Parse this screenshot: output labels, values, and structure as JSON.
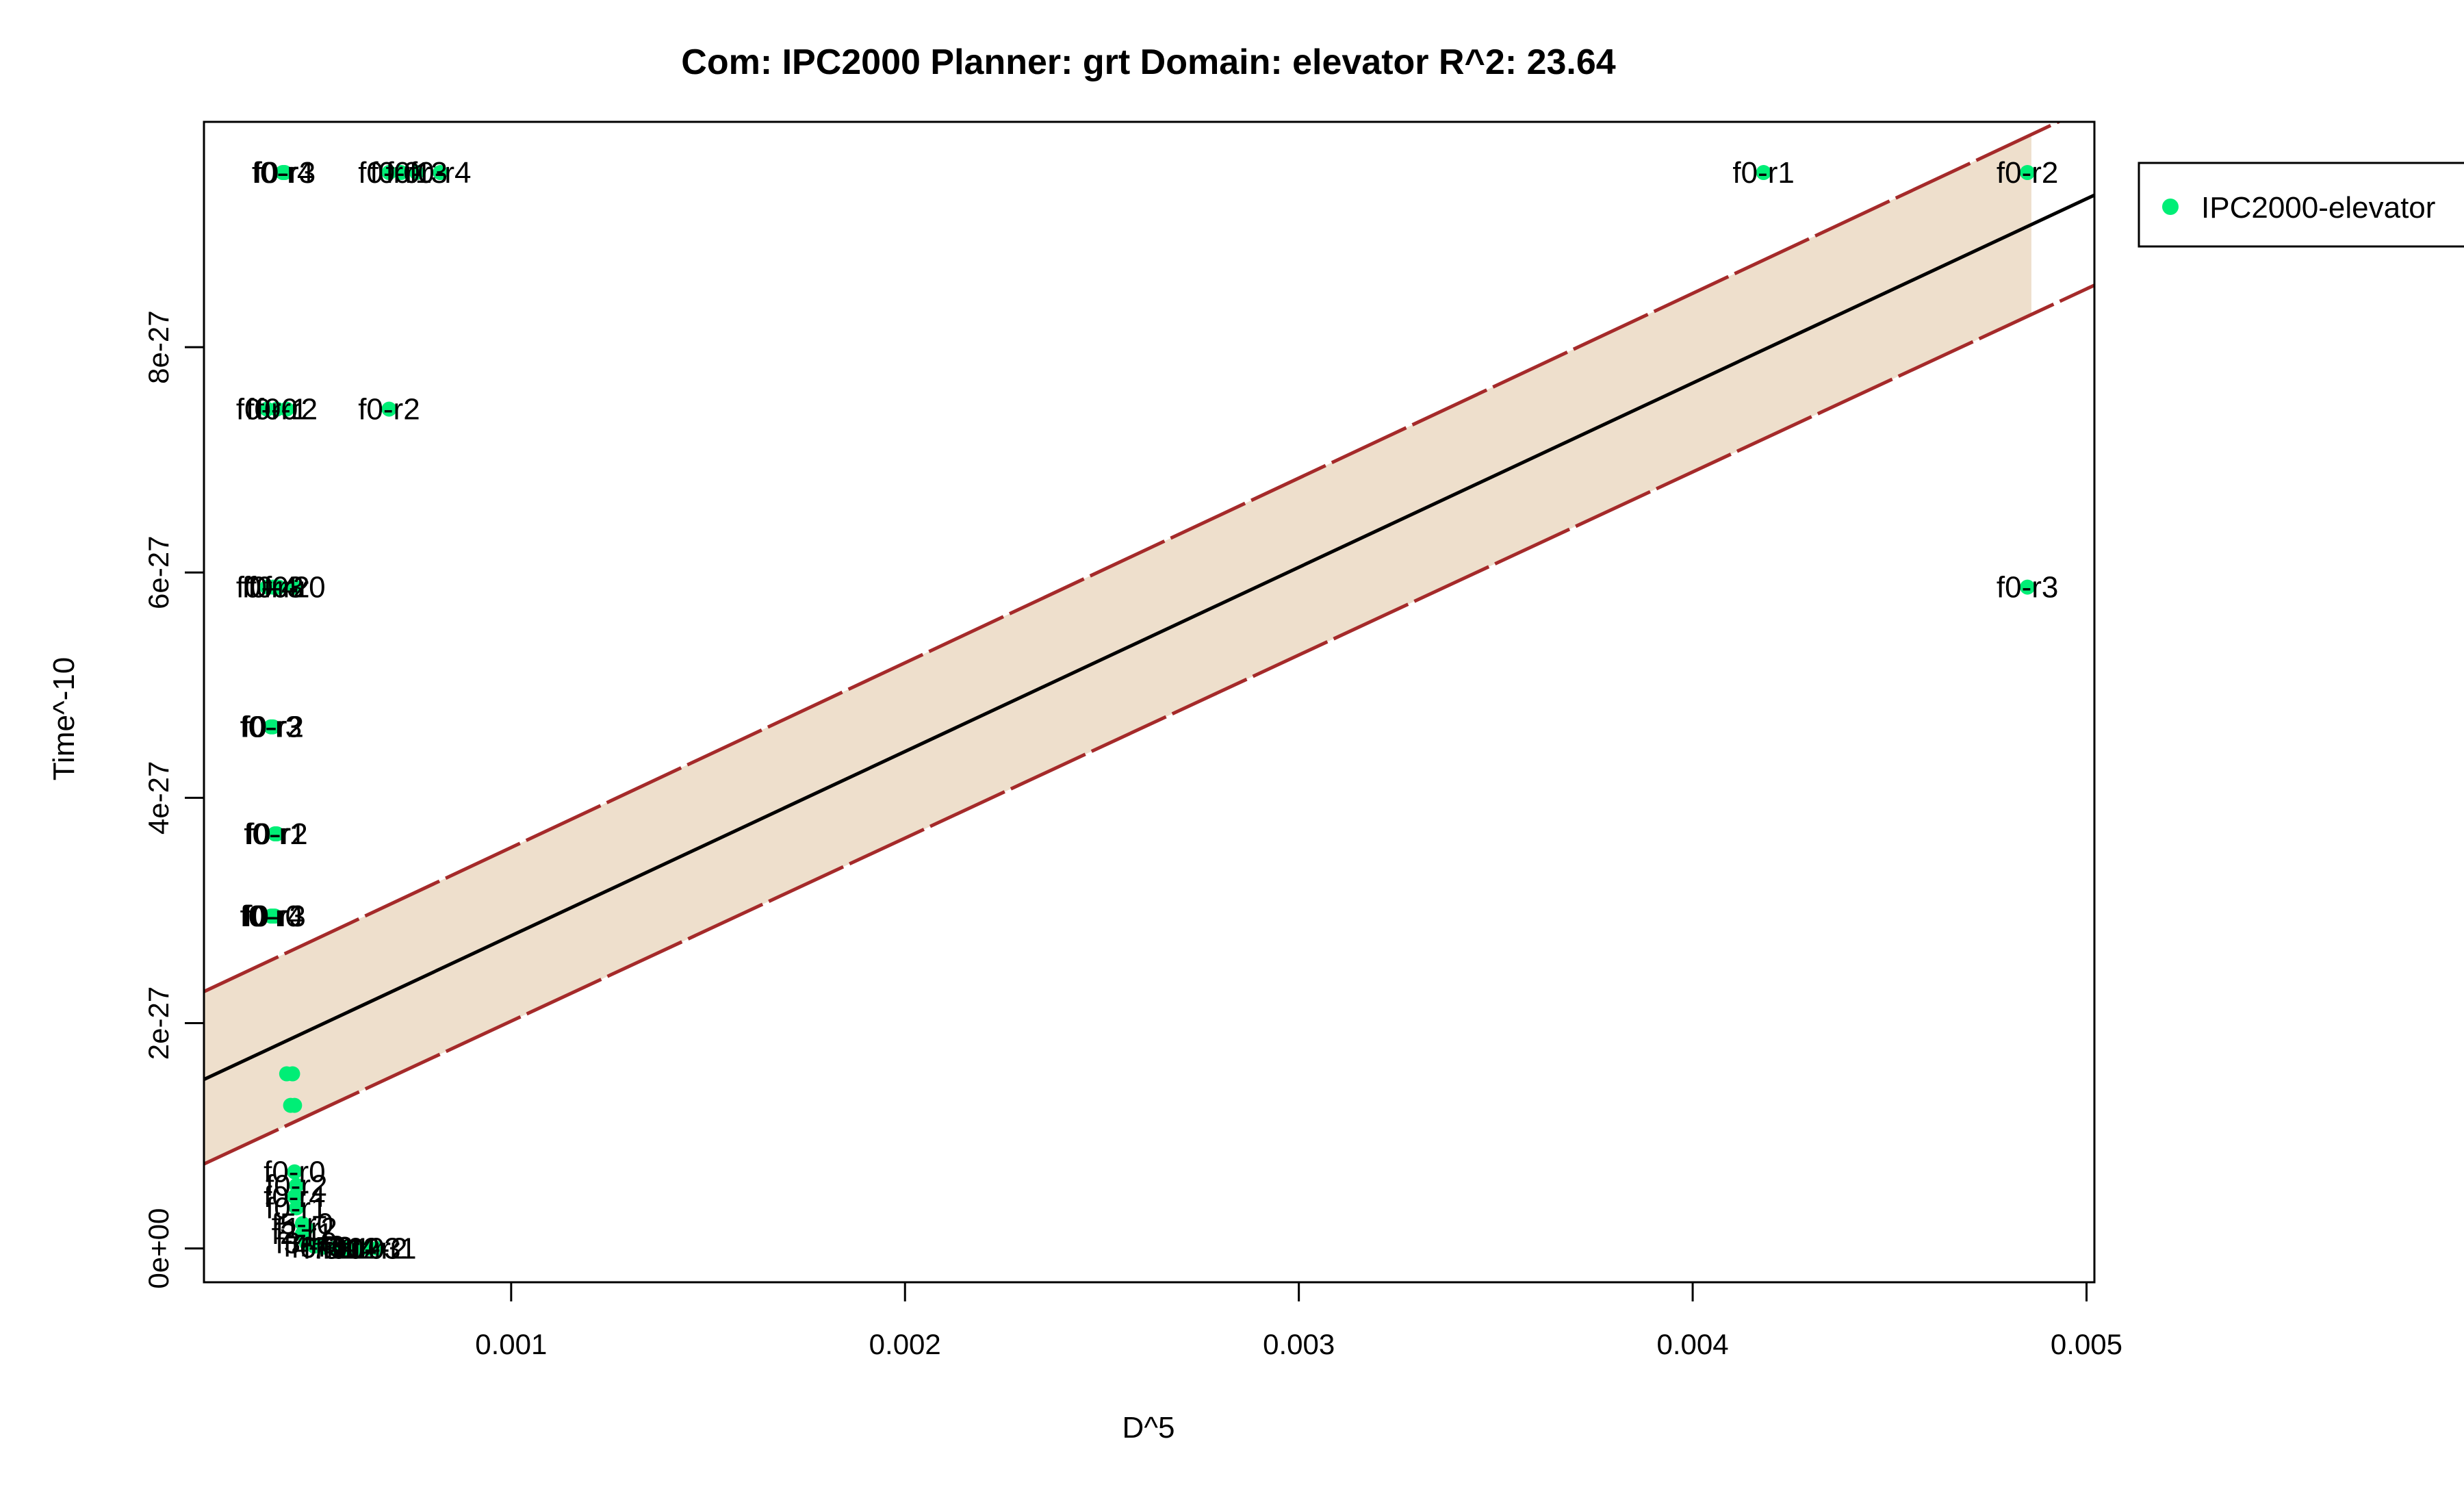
{
  "chart_data": {
    "type": "scatter",
    "title": "Com: IPC2000 Planner: grt Domain: elevator R^2: 23.64",
    "xlabel": "D^5",
    "ylabel": "Time^-10",
    "xlim": [
      0.00022,
      0.00502
    ],
    "ylim": [
      -3e-28,
      1e-26
    ],
    "x_ticks": [
      {
        "value": 0.001,
        "label": "0.001"
      },
      {
        "value": 0.002,
        "label": "0.002"
      },
      {
        "value": 0.003,
        "label": "0.003"
      },
      {
        "value": 0.004,
        "label": "0.004"
      },
      {
        "value": 0.005,
        "label": "0.005"
      }
    ],
    "y_ticks": [
      {
        "value": 0,
        "label": "0e+00"
      },
      {
        "value": 2e-27,
        "label": "2e-27"
      },
      {
        "value": 4e-27,
        "label": "4e-27"
      },
      {
        "value": 6e-27,
        "label": "6e-27"
      },
      {
        "value": 8e-27,
        "label": "8e-27"
      }
    ],
    "grid": false,
    "legend": {
      "position": "top-right",
      "entries": [
        {
          "name": "IPC2000-elevator",
          "color": "#00ee76"
        }
      ]
    },
    "point_color": "#00ee76",
    "fit_line": {
      "color": "#000000",
      "x": [
        0.00022,
        0.00502
      ],
      "y": [
        1.5e-27,
        9.35e-27
      ]
    },
    "prediction_band": {
      "fill": "#eedfcc",
      "edge_color": "#a52a2a",
      "fill_x_range": [
        0.00022,
        0.00486
      ],
      "upper": {
        "x": [
          0.00022,
          0.00502
        ],
        "y": [
          2.28e-27,
          1.015e-26
        ]
      },
      "lower": {
        "x": [
          0.00022,
          0.00502
        ],
        "y": [
          7.5e-28,
          8.55e-27
        ]
      }
    },
    "series": [
      {
        "name": "IPC2000-elevator",
        "points": [
          {
            "x": 0.00042,
            "y": 9.55e-27,
            "label": "f0-r4"
          },
          {
            "x": 0.000425,
            "y": 9.55e-27,
            "label": "f0-r3"
          },
          {
            "x": 0.00069,
            "y": 9.55e-27,
            "label": "f0-r0"
          },
          {
            "x": 0.00072,
            "y": 9.55e-27,
            "label": "f0-r1"
          },
          {
            "x": 0.00076,
            "y": 9.55e-27,
            "label": "f0-r3"
          },
          {
            "x": 0.00082,
            "y": 9.55e-27,
            "label": "f0-r4"
          },
          {
            "x": 0.00418,
            "y": 9.55e-27,
            "label": "f0-r1"
          },
          {
            "x": 0.00485,
            "y": 9.55e-27,
            "label": "f0-r2"
          },
          {
            "x": 0.00038,
            "y": 7.45e-27,
            "label": "f0-r0"
          },
          {
            "x": 0.000405,
            "y": 7.45e-27,
            "label": "f0-r1"
          },
          {
            "x": 0.00043,
            "y": 7.45e-27,
            "label": "f0-r2"
          },
          {
            "x": 0.00069,
            "y": 7.45e-27,
            "label": "f0-r2"
          },
          {
            "x": 0.00038,
            "y": 5.87e-27,
            "label": "f0-r4"
          },
          {
            "x": 0.000395,
            "y": 5.87e-27,
            "label": "f0-r3"
          },
          {
            "x": 0.00041,
            "y": 5.87e-27,
            "label": "f0-r2"
          },
          {
            "x": 0.00045,
            "y": 5.87e-27,
            "label": "f0-r0"
          },
          {
            "x": 0.00485,
            "y": 5.87e-27,
            "label": "f0-r3"
          },
          {
            "x": 0.00039,
            "y": 4.63e-27,
            "label": "f0-r3"
          },
          {
            "x": 0.000395,
            "y": 4.63e-27,
            "label": "f0-r2"
          },
          {
            "x": 0.0004,
            "y": 3.68e-27,
            "label": "f0-r1"
          },
          {
            "x": 0.000405,
            "y": 3.68e-27,
            "label": "f0-r2"
          },
          {
            "x": 0.00039,
            "y": 2.95e-27,
            "label": "f0-r0"
          },
          {
            "x": 0.000395,
            "y": 2.95e-27,
            "label": "f0-r4"
          },
          {
            "x": 0.0004,
            "y": 2.95e-27,
            "label": "f0-r3"
          },
          {
            "x": 0.00043,
            "y": 1.55e-27,
            "label": ""
          },
          {
            "x": 0.000445,
            "y": 1.55e-27,
            "label": ""
          },
          {
            "x": 0.00044,
            "y": 1.27e-27,
            "label": ""
          },
          {
            "x": 0.00045,
            "y": 1.27e-27,
            "label": ""
          },
          {
            "x": 0.00045,
            "y": 6.8e-28,
            "label": "f0-r0"
          },
          {
            "x": 0.000455,
            "y": 5.6e-28,
            "label": "f0-r2"
          },
          {
            "x": 0.00045,
            "y": 4.6e-28,
            "label": "f0-r4"
          },
          {
            "x": 0.000455,
            "y": 3.6e-28,
            "label": "f0-r1"
          },
          {
            "x": 0.00047,
            "y": 2.2e-28,
            "label": "f5-r0"
          },
          {
            "x": 0.00048,
            "y": 1.8e-28,
            "label": "f1-r2"
          },
          {
            "x": 0.00047,
            "y": 1.3e-28,
            "label": "f2-r1"
          },
          {
            "x": 0.00048,
            "y": 5e-29,
            "label": "f3-r0"
          },
          {
            "x": 0.0005,
            "y": 2e-29,
            "label": "f4-r3"
          },
          {
            "x": 0.00052,
            "y": 1e-29,
            "label": "f6-r2"
          },
          {
            "x": 0.00055,
            "y": 0.0,
            "label": "f7-r1"
          },
          {
            "x": 0.00058,
            "y": 0.0,
            "label": "f8-r4"
          },
          {
            "x": 0.0006,
            "y": 0.0,
            "label": "f9-r0"
          },
          {
            "x": 0.00062,
            "y": 0.0,
            "label": "f10-r3"
          },
          {
            "x": 0.00064,
            "y": 0.0,
            "label": "f11-r2"
          },
          {
            "x": 0.00066,
            "y": 0.0,
            "label": "f12-r1"
          }
        ]
      }
    ]
  }
}
